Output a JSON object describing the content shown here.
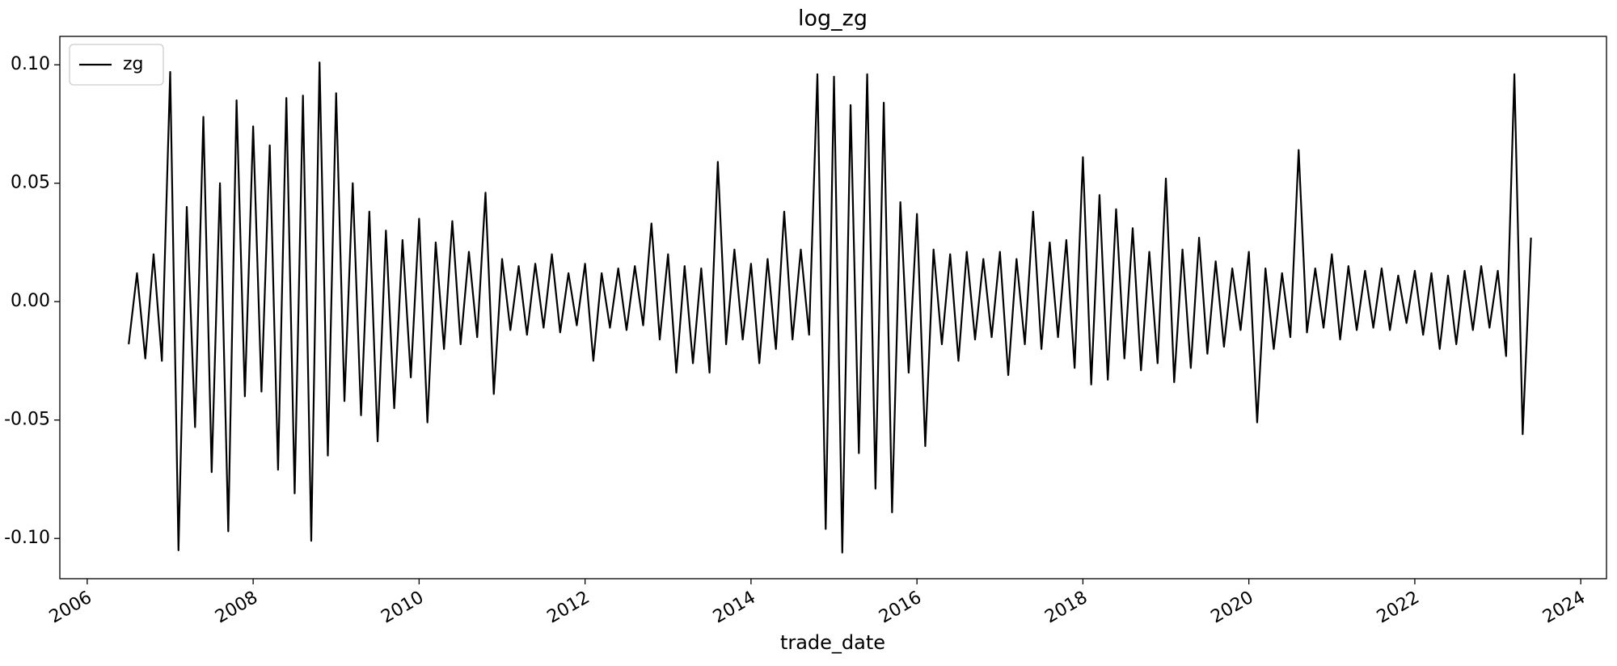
{
  "chart_data": {
    "type": "line",
    "title": "log_zg",
    "x_label": "trade_date",
    "legend": "upper left",
    "grid": false,
    "xlim": [
      2005.67,
      2024.31
    ],
    "xticks": [
      2006,
      2008,
      2010,
      2012,
      2014,
      2016,
      2018,
      2020,
      2022,
      2024
    ],
    "ylim": [
      -0.117,
      0.112
    ],
    "yticks": [
      {
        "value": -0.1,
        "label": "-0.10"
      },
      {
        "value": -0.05,
        "label": "-0.05"
      },
      {
        "value": 0,
        "label": "0.00"
      },
      {
        "value": 0.05,
        "label": "0.05"
      },
      {
        "value": 0.1,
        "label": "0.10"
      }
    ],
    "x": [
      2006.5,
      2006.6,
      2006.7,
      2006.8,
      2006.9,
      2007.0,
      2007.1,
      2007.2,
      2007.3,
      2007.4,
      2007.5,
      2007.6,
      2007.7,
      2007.8,
      2007.9,
      2008.0,
      2008.1,
      2008.2,
      2008.3,
      2008.4,
      2008.5,
      2008.6,
      2008.7,
      2008.8,
      2008.9,
      2009.0,
      2009.1,
      2009.2,
      2009.3,
      2009.4,
      2009.5,
      2009.6,
      2009.7,
      2009.8,
      2009.9,
      2010.0,
      2010.1,
      2010.2,
      2010.3,
      2010.4,
      2010.5,
      2010.6,
      2010.7,
      2010.8,
      2010.9,
      2011.0,
      2011.1,
      2011.2,
      2011.3,
      2011.4,
      2011.5,
      2011.6,
      2011.7,
      2011.8,
      2011.9,
      2012.0,
      2012.1,
      2012.2,
      2012.3,
      2012.4,
      2012.5,
      2012.6,
      2012.7,
      2012.8,
      2012.9,
      2013.0,
      2013.1,
      2013.2,
      2013.3,
      2013.4,
      2013.5,
      2013.6,
      2013.7,
      2013.8,
      2013.9,
      2014.0,
      2014.1,
      2014.2,
      2014.3,
      2014.4,
      2014.5,
      2014.6,
      2014.7,
      2014.8,
      2014.9,
      2015.0,
      2015.1,
      2015.2,
      2015.3,
      2015.4,
      2015.5,
      2015.6,
      2015.7,
      2015.8,
      2015.9,
      2016.0,
      2016.1,
      2016.2,
      2016.3,
      2016.4,
      2016.5,
      2016.6,
      2016.7,
      2016.8,
      2016.9,
      2017.0,
      2017.1,
      2017.2,
      2017.3,
      2017.4,
      2017.5,
      2017.6,
      2017.7,
      2017.8,
      2017.9,
      2018.0,
      2018.1,
      2018.2,
      2018.3,
      2018.4,
      2018.5,
      2018.6,
      2018.7,
      2018.8,
      2018.9,
      2019.0,
      2019.1,
      2019.2,
      2019.3,
      2019.4,
      2019.5,
      2019.6,
      2019.7,
      2019.8,
      2019.9,
      2020.0,
      2020.1,
      2020.2,
      2020.3,
      2020.4,
      2020.5,
      2020.6,
      2020.7,
      2020.8,
      2020.9,
      2021.0,
      2021.1,
      2021.2,
      2021.3,
      2021.4,
      2021.5,
      2021.6,
      2021.7,
      2021.8,
      2021.9,
      2022.0,
      2022.1,
      2022.2,
      2022.3,
      2022.4,
      2022.5,
      2022.6,
      2022.7,
      2022.8,
      2022.9,
      2023.0,
      2023.1,
      2023.2,
      2023.3,
      2023.4
    ],
    "series": [
      {
        "name": "zg",
        "color": "#000000",
        "values": [
          -0.018,
          0.012,
          -0.024,
          0.02,
          -0.025,
          0.097,
          -0.105,
          0.04,
          -0.053,
          0.078,
          -0.072,
          0.05,
          -0.097,
          0.085,
          -0.04,
          0.074,
          -0.038,
          0.066,
          -0.071,
          0.086,
          -0.081,
          0.087,
          -0.101,
          0.101,
          -0.065,
          0.088,
          -0.042,
          0.05,
          -0.048,
          0.038,
          -0.059,
          0.03,
          -0.045,
          0.026,
          -0.032,
          0.035,
          -0.051,
          0.025,
          -0.02,
          0.034,
          -0.018,
          0.021,
          -0.015,
          0.046,
          -0.039,
          0.018,
          -0.012,
          0.015,
          -0.014,
          0.016,
          -0.011,
          0.02,
          -0.013,
          0.012,
          -0.01,
          0.016,
          -0.025,
          0.012,
          -0.011,
          0.014,
          -0.012,
          0.015,
          -0.01,
          0.033,
          -0.016,
          0.02,
          -0.03,
          0.015,
          -0.026,
          0.014,
          -0.03,
          0.059,
          -0.018,
          0.022,
          -0.016,
          0.016,
          -0.026,
          0.018,
          -0.02,
          0.038,
          -0.016,
          0.022,
          -0.014,
          0.096,
          -0.096,
          0.095,
          -0.106,
          0.083,
          -0.064,
          0.096,
          -0.079,
          0.084,
          -0.089,
          0.042,
          -0.03,
          0.037,
          -0.061,
          0.022,
          -0.018,
          0.02,
          -0.025,
          0.021,
          -0.016,
          0.018,
          -0.015,
          0.021,
          -0.031,
          0.018,
          -0.018,
          0.038,
          -0.02,
          0.025,
          -0.015,
          0.026,
          -0.028,
          0.061,
          -0.035,
          0.045,
          -0.033,
          0.039,
          -0.024,
          0.031,
          -0.029,
          0.021,
          -0.026,
          0.052,
          -0.034,
          0.022,
          -0.028,
          0.027,
          -0.022,
          0.017,
          -0.019,
          0.014,
          -0.012,
          0.021,
          -0.051,
          0.014,
          -0.02,
          0.012,
          -0.015,
          0.064,
          -0.013,
          0.014,
          -0.011,
          0.02,
          -0.016,
          0.015,
          -0.012,
          0.013,
          -0.011,
          0.014,
          -0.012,
          0.011,
          -0.009,
          0.013,
          -0.014,
          0.012,
          -0.02,
          0.011,
          -0.018,
          0.013,
          -0.012,
          0.015,
          -0.011,
          0.013,
          -0.023,
          0.096,
          -0.056,
          0.027
        ]
      }
    ]
  }
}
